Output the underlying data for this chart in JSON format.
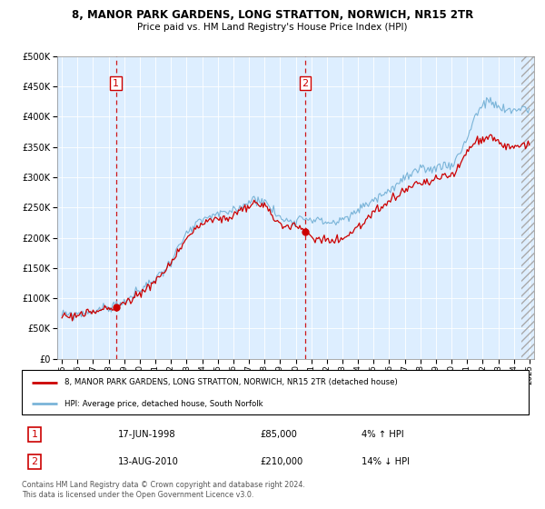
{
  "title": "8, MANOR PARK GARDENS, LONG STRATTON, NORWICH, NR15 2TR",
  "subtitle": "Price paid vs. HM Land Registry's House Price Index (HPI)",
  "legend_line1": "8, MANOR PARK GARDENS, LONG STRATTON, NORWICH, NR15 2TR (detached house)",
  "legend_line2": "HPI: Average price, detached house, South Norfolk",
  "purchase1_date": "17-JUN-1998",
  "purchase1_price": "£85,000",
  "purchase1_hpi": "4% ↑ HPI",
  "purchase2_date": "13-AUG-2010",
  "purchase2_price": "£210,000",
  "purchase2_hpi": "14% ↓ HPI",
  "footer": "Contains HM Land Registry data © Crown copyright and database right 2024.\nThis data is licensed under the Open Government Licence v3.0.",
  "hpi_color": "#7ab4d8",
  "property_color": "#cc0000",
  "vline_color": "#cc0000",
  "dot_color": "#cc0000",
  "chart_bg": "#ddeeff",
  "ylim": [
    0,
    500000
  ],
  "yticks": [
    0,
    50000,
    100000,
    150000,
    200000,
    250000,
    300000,
    350000,
    400000,
    450000,
    500000
  ],
  "purchase1_x": 1998.46,
  "purchase1_y": 85000,
  "purchase2_x": 2010.62,
  "purchase2_y": 210000,
  "xmin": 1995.0,
  "xmax": 2025.0
}
